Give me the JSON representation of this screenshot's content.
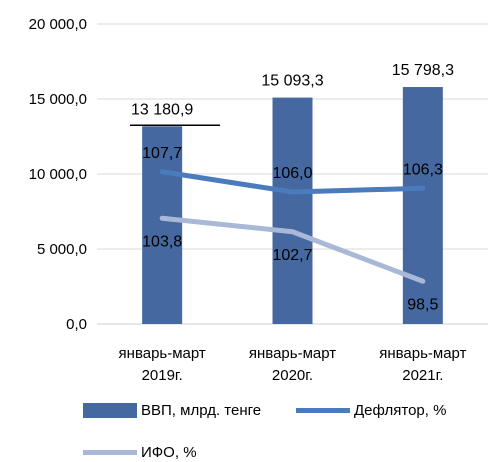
{
  "chart_data": {
    "type": "bar",
    "categories": [
      [
        "январь-март",
        "2019г."
      ],
      [
        "январь-март",
        "2020г."
      ],
      [
        "январь-март",
        "2021г."
      ]
    ],
    "ylim": [
      0,
      20000
    ],
    "yticks": [
      "0,0",
      "5 000,0",
      "10 000,0",
      "15 000,0",
      "20 000,0"
    ],
    "ytick_values": [
      0,
      5000,
      10000,
      15000,
      20000
    ],
    "grid": true,
    "legend_position": "bottom",
    "series": [
      {
        "name": "ВВП, млрд. тенге",
        "kind": "bar",
        "color": "#44689f",
        "values": [
          13180.9,
          15093.3,
          15798.3
        ],
        "labels": [
          "13 180,9",
          "15 093,3",
          "15 798,3"
        ]
      },
      {
        "name": "Дефлятор, %",
        "kind": "line",
        "color": "#4a7bbd",
        "values": [
          107.7,
          106.0,
          106.3
        ],
        "labels": [
          "107,7",
          "106,0",
          "106,3"
        ],
        "plotted_at": [
          10150,
          8800,
          9050
        ]
      },
      {
        "name": "ИФО, %",
        "kind": "line",
        "color": "#a9b8d6",
        "values": [
          103.8,
          102.7,
          98.5
        ],
        "labels": [
          "103,8",
          "102,7",
          "98,5"
        ],
        "plotted_at": [
          7050,
          6150,
          2850
        ]
      }
    ]
  }
}
